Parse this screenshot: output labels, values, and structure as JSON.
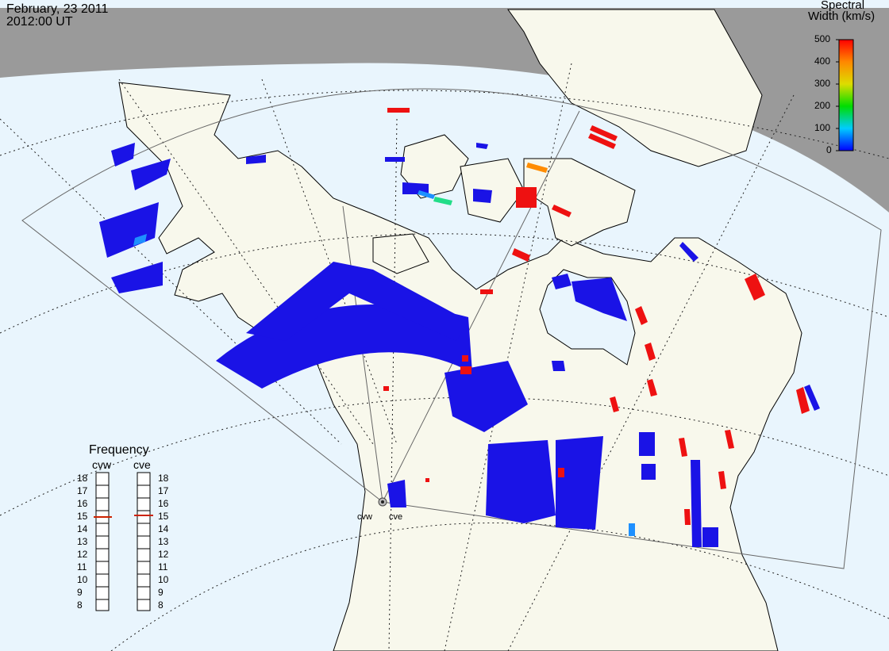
{
  "header": {
    "date": "February, 23 2011",
    "time": "2012:00 UT"
  },
  "colors": {
    "ocean": "#e9f5fd",
    "land": "#f8f8ec",
    "night": "#9a9a9a",
    "coast": "#000000",
    "grid": "#222222",
    "fov": "#666666",
    "scatter_low": "#1a13e6",
    "scatter_high": "#ee1111"
  },
  "colorbar": {
    "title_line1": "Spectral",
    "title_line2": "Width (km/s)",
    "ticks": [
      "500",
      "400",
      "300",
      "200",
      "100",
      "0"
    ],
    "range": [
      0,
      500
    ]
  },
  "frequency_panel": {
    "title": "Frequency",
    "radars": [
      {
        "name": "cvw",
        "selected_mhz": 15
      },
      {
        "name": "cve",
        "selected_mhz": 15
      }
    ],
    "scale_mhz": [
      "18",
      "17",
      "16",
      "15",
      "14",
      "13",
      "12",
      "11",
      "10",
      "9",
      "8"
    ]
  },
  "radar_sites": {
    "west": "cvw",
    "east": "cve"
  },
  "map": {
    "region": "North America",
    "projection": "polar stereographic",
    "terminator": "night shading (top)"
  }
}
